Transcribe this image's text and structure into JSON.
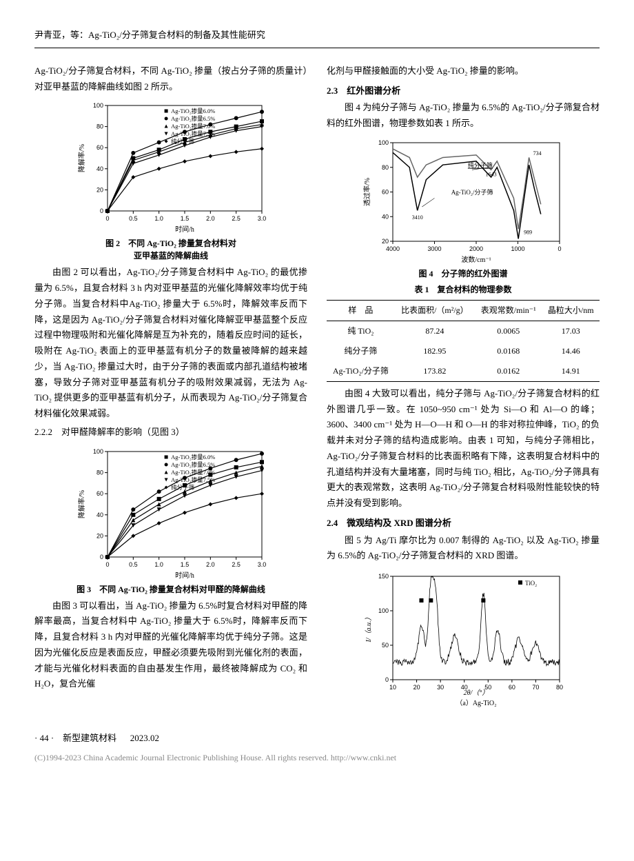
{
  "header": {
    "running_head": "尹青亚，等：Ag-TiO₂/分子筛复合材料的制备及其性能研究"
  },
  "left_col": {
    "p1": "Ag-TiO₂/分子筛复合材料，不同 Ag-TiO₂ 掺量（按占分子筛的质量计）对亚甲基蓝的降解曲线如图 2 所示。",
    "fig2": {
      "caption_line1": "图 2　不同 Ag-TiO₂ 掺量复合材料对",
      "caption_line2": "亚甲基蓝的降解曲线",
      "legend": [
        "Ag-TiO₂掺量6.0%",
        "Ag-TiO₂掺量6.5%",
        "Ag-TiO₂掺量7.0%",
        "Ag-TiO₂掺量7.5%",
        "纯分子筛"
      ],
      "x_label": "时间/h",
      "y_label": "降解率/%",
      "x_ticks": [
        0,
        0.5,
        1.0,
        1.5,
        2.0,
        2.5,
        3.0
      ],
      "y_ticks": [
        0,
        20,
        40,
        60,
        80,
        100
      ],
      "series": {
        "s60": {
          "x": [
            0,
            0.5,
            1.0,
            1.5,
            2.0,
            2.5,
            3.0
          ],
          "y": [
            0,
            50,
            58,
            68,
            75,
            80,
            85
          ],
          "marker": "square",
          "color": "#000"
        },
        "s65": {
          "x": [
            0,
            0.5,
            1.0,
            1.5,
            2.0,
            2.5,
            3.0
          ],
          "y": [
            0,
            55,
            65,
            75,
            82,
            88,
            94
          ],
          "marker": "circle",
          "color": "#000"
        },
        "s70": {
          "x": [
            0,
            0.5,
            1.0,
            1.5,
            2.0,
            2.5,
            3.0
          ],
          "y": [
            0,
            48,
            56,
            65,
            72,
            78,
            82
          ],
          "marker": "triangle-up",
          "color": "#000"
        },
        "s75": {
          "x": [
            0,
            0.5,
            1.0,
            1.5,
            2.0,
            2.5,
            3.0
          ],
          "y": [
            0,
            45,
            53,
            62,
            70,
            76,
            80
          ],
          "marker": "triangle-down",
          "color": "#000"
        },
        "pure": {
          "x": [
            0,
            0.5,
            1.0,
            1.5,
            2.0,
            2.5,
            3.0
          ],
          "y": [
            0,
            32,
            40,
            47,
            52,
            56,
            59
          ],
          "marker": "diamond",
          "color": "#000"
        }
      },
      "plot_style": {
        "bg": "#ffffff",
        "axis_color": "#000",
        "line_width": 1.2,
        "marker_size": 3,
        "font_size": 9
      }
    },
    "p2": "由图 2 可以看出，Ag-TiO₂/分子筛复合材料中 Ag-TiO₂ 的最优掺量为 6.5%，且复合材料 3 h 内对亚甲基蓝的光催化降解效率均优于纯分子筛。当复合材料中Ag-TiO₂ 掺量大于 6.5%时，降解效率反而下降，这是因为 Ag-TiO₂/分子筛复合材料对催化降解亚甲基蓝整个反应过程中物理吸附和光催化降解是互为补充的，随着反应时间的延长，吸附在 Ag-TiO₂ 表面上的亚甲基蓝有机分子的数量被降解的越来越少，当 Ag-TiO₂ 掺量过大时，由于分子筛的表面或内部孔道结构被堵塞，导致分子筛对亚甲基蓝有机分子的吸附效果减弱，无法为 Ag-TiO₂ 提供更多的亚甲基蓝有机分子，从而表现为 Ag-TiO₂/分子筛复合材料催化效果减弱。",
    "h222": "2.2.2　对甲醛降解率的影响（见图 3）",
    "fig3": {
      "caption": "图 3　不同 Ag-TiO₂ 掺量复合材料对甲醛的降解曲线",
      "legend": [
        "Ag-TiO₂掺量6.0%",
        "Ag-TiO₂掺量6.5%",
        "Ag-TiO₂掺量7.0%",
        "Ag-TiO₂掺量7.5%",
        "纯分子筛"
      ],
      "x_label": "时间/h",
      "y_label": "降解率/%",
      "x_ticks": [
        0,
        0.5,
        1.0,
        1.5,
        2.0,
        2.5,
        3.0
      ],
      "y_ticks": [
        0,
        20,
        40,
        60,
        80,
        100
      ],
      "series": {
        "s60": {
          "x": [
            0,
            0.5,
            1.0,
            1.5,
            2.0,
            2.5,
            3.0
          ],
          "y": [
            0,
            40,
            55,
            68,
            78,
            85,
            90
          ],
          "marker": "square",
          "color": "#000"
        },
        "s65": {
          "x": [
            0,
            0.5,
            1.0,
            1.5,
            2.0,
            2.5,
            3.0
          ],
          "y": [
            0,
            45,
            62,
            75,
            84,
            92,
            98
          ],
          "marker": "circle",
          "color": "#000"
        },
        "s70": {
          "x": [
            0,
            0.5,
            1.0,
            1.5,
            2.0,
            2.5,
            3.0
          ],
          "y": [
            0,
            35,
            50,
            62,
            72,
            80,
            86
          ],
          "marker": "triangle-up",
          "color": "#000"
        },
        "s75": {
          "x": [
            0,
            0.5,
            1.0,
            1.5,
            2.0,
            2.5,
            3.0
          ],
          "y": [
            0,
            30,
            45,
            58,
            68,
            76,
            82
          ],
          "marker": "triangle-down",
          "color": "#000"
        },
        "pure": {
          "x": [
            0,
            0.5,
            1.0,
            1.5,
            2.0,
            2.5,
            3.0
          ],
          "y": [
            0,
            20,
            32,
            42,
            50,
            56,
            60
          ],
          "marker": "diamond",
          "color": "#000"
        }
      },
      "plot_style": {
        "bg": "#ffffff",
        "axis_color": "#000",
        "line_width": 1.2,
        "marker_size": 3,
        "font_size": 9
      }
    },
    "p3": "由图 3 可以看出，当 Ag-TiO₂ 掺量为 6.5%时复合材料对甲醛的降解率最高，当复合材料中 Ag-TiO₂ 掺量大于 6.5%时，降解率反而下降，且复合材料 3 h 内对甲醛的光催化降解率均优于纯分子筛。这是因为光催化反应是表面反应，甲醛必须要先吸附到光催化剂的表面，才能与光催化材料表面的自由基发生作用，最终被降解成为 CO₂ 和 H₂O，复合光催"
  },
  "right_col": {
    "p_top": "化剂与甲醛接触面的大小受 Ag-TiO₂ 掺量的影响。",
    "h23": "2.3　红外图谱分析",
    "p23": "图 4 为纯分子筛与 Ag-TiO₂ 掺量为 6.5%的 Ag-TiO₂/分子筛复合材料的红外图谱，物理参数如表 1 所示。",
    "fig4": {
      "caption": "图 4　分子筛的红外图谱",
      "x_label": "波数/cm⁻¹",
      "y_label": "透过率/%",
      "x_ticks": [
        4000,
        3000,
        2000,
        1000,
        0
      ],
      "y_ticks": [
        20,
        40,
        60,
        80,
        100
      ],
      "annotations": {
        "pure_label": "纯分子筛",
        "comp_label": "Ag-TiO₂/分子筛",
        "peak_3410": "3410",
        "peak_1643": "1643",
        "peak_989": "989",
        "peak_734": "734"
      },
      "series": {
        "pure": {
          "color": "#666666",
          "line_width": 1.5,
          "points": [
            [
              4000,
              95
            ],
            [
              3600,
              88
            ],
            [
              3410,
              72
            ],
            [
              3200,
              82
            ],
            [
              2800,
              88
            ],
            [
              2000,
              90
            ],
            [
              1643,
              78
            ],
            [
              1500,
              85
            ],
            [
              1100,
              55
            ],
            [
              989,
              30
            ],
            [
              850,
              60
            ],
            [
              734,
              88
            ],
            [
              600,
              70
            ],
            [
              450,
              50
            ]
          ]
        },
        "comp": {
          "color": "#000000",
          "line_width": 1.5,
          "points": [
            [
              4000,
              92
            ],
            [
              3600,
              80
            ],
            [
              3410,
              45
            ],
            [
              3200,
              70
            ],
            [
              2800,
              82
            ],
            [
              2000,
              85
            ],
            [
              1643,
              72
            ],
            [
              1500,
              80
            ],
            [
              1100,
              45
            ],
            [
              989,
              22
            ],
            [
              850,
              55
            ],
            [
              734,
              82
            ],
            [
              600,
              62
            ],
            [
              450,
              42
            ]
          ]
        }
      },
      "plot_style": {
        "bg": "#ffffff",
        "axis_color": "#000",
        "font_size": 9
      }
    },
    "table1": {
      "caption": "表 1　复合材料的物理参数",
      "columns": [
        "样　品",
        "比表面积/（m²/g）",
        "表观常数/min⁻¹",
        "晶粒大小/nm"
      ],
      "rows": [
        [
          "纯 TiO₂",
          "87.24",
          "0.0065",
          "17.03"
        ],
        [
          "纯分子筛",
          "182.95",
          "0.0168",
          "14.46"
        ],
        [
          "Ag-TiO₂/分子筛",
          "173.82",
          "0.0162",
          "14.91"
        ]
      ]
    },
    "p23b": "由图 4 大致可以看出，纯分子筛与 Ag-TiO₂/分子筛复合材料的红外图谱几乎一致。在 1050~950 cm⁻¹ 处为 Si—O 和 Al—O 的峰；3600、3400 cm⁻¹ 处为 H—O—H 和 O—H 的非对称拉伸峰，TiO₂ 的负载并未对分子筛的结构造成影响。由表 1 可知，与纯分子筛相比，Ag-TiO₂/分子筛复合材料的比表面积略有下降，这表明复合材料中的孔道结构并没有大量堵塞，同时与纯 TiO₂ 相比，Ag-TiO₂/分子筛具有更大的表观常数，这表明 Ag-TiO₂/分子筛复合材料吸附性能较快的特点并没有受到影响。",
    "h24": "2.4　微观结构及 XRD 图谱分析",
    "p24": "图 5 为 Ag/Ti 摩尔比为 0.007 制得的 Ag-TiO₂ 以及 Ag-TiO₂ 掺量为 6.5%的 Ag-TiO₂/分子筛复合材料的 XRD 图谱。",
    "fig5a": {
      "caption": "（a）Ag-TiO₂",
      "x_label": "2θ/（°）",
      "y_label": "I/（a.u.）",
      "x_ticks": [
        10,
        20,
        30,
        40,
        50,
        60,
        70,
        80
      ],
      "y_ticks": [
        0,
        50,
        100,
        150
      ],
      "legend_marker": "■ TiO₂",
      "peaks_marked_x": [
        22,
        26,
        48
      ],
      "series": {
        "color": "#000",
        "line_width": 0.8
      },
      "plot_style": {
        "bg": "#ffffff",
        "axis_color": "#000",
        "font_size": 9
      }
    }
  },
  "footer": {
    "page_num": "· 44 ·",
    "journal": "新型建筑材料",
    "date": "2023.02",
    "copyright": "(C)1994-2023 China Academic Journal Electronic Publishing House. All rights reserved.    http://www.cnki.net"
  }
}
